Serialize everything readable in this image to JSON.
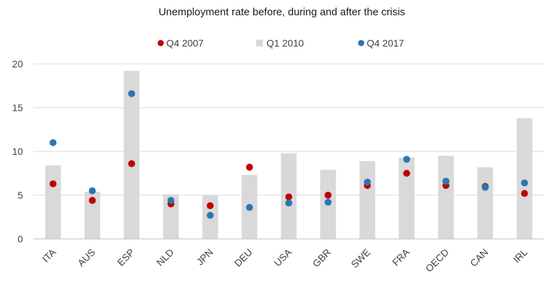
{
  "chart_data": {
    "type": "bar",
    "title": "Unemployment rate before, during and after the crisis",
    "xlabel": "",
    "ylabel": "",
    "ylim": [
      0,
      20
    ],
    "yticks": [
      0,
      5,
      10,
      15,
      20
    ],
    "grid": true,
    "legend": "top",
    "categories": [
      "ITA",
      "AUS",
      "ESP",
      "NLD",
      "JPN",
      "DEU",
      "USA",
      "GBR",
      "SWE",
      "FRA",
      "OECD",
      "CAN",
      "IRL"
    ],
    "series": [
      {
        "name": "Q4 2007",
        "kind": "dot",
        "color": "#c00000",
        "values": [
          6.3,
          4.4,
          8.6,
          4.0,
          3.8,
          8.2,
          4.8,
          5.0,
          6.1,
          7.5,
          6.1,
          6.0,
          5.2
        ]
      },
      {
        "name": "Q1 2010",
        "kind": "bar",
        "color": "#d9d9d9",
        "values": [
          8.4,
          5.4,
          19.2,
          5.1,
          5.0,
          7.3,
          9.8,
          7.9,
          8.9,
          9.3,
          9.5,
          8.2,
          13.8
        ]
      },
      {
        "name": "Q4 2017",
        "kind": "dot",
        "color": "#2e75b6",
        "values": [
          11.0,
          5.5,
          16.6,
          4.4,
          2.7,
          3.6,
          4.1,
          4.2,
          6.5,
          9.1,
          6.6,
          5.9,
          6.4
        ]
      }
    ]
  }
}
